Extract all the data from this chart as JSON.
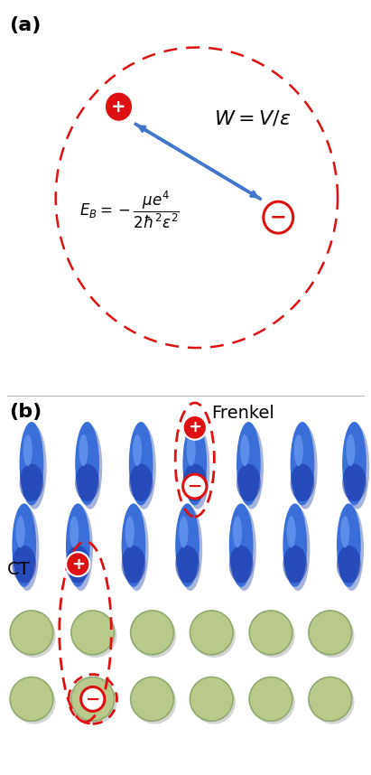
{
  "fig_width": 4.11,
  "fig_height": 8.58,
  "panel_a_bg": "#f5e0cc",
  "circle_color": "#dd1111",
  "blue_arrow_color": "#4477cc",
  "red_particle_color": "#dd1111",
  "green_molecule_color": "#b8c98a",
  "green_molecule_edge": "#8faa70",
  "blue_mol_main": "#3a6fd8",
  "blue_mol_highlight": "#6699ee",
  "blue_mol_dark": "#1a3fa0",
  "dashed_ellipse_color": "#dd1111",
  "label_a": "(a)",
  "label_b": "(b)",
  "frenkel_label": "Frenkel",
  "ct_label": "CT"
}
